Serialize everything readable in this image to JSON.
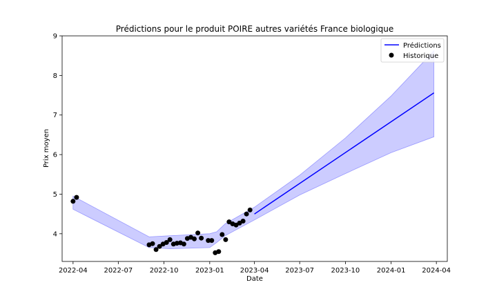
{
  "chart_data": {
    "type": "line",
    "title": "Prédictions pour le produit POIRE autres variétés France biologique",
    "xlabel": "Date",
    "ylabel": "Prix moyen",
    "xlim": [
      "2022-03-10",
      "2024-04-23"
    ],
    "ylim": [
      3.3,
      9.0
    ],
    "x_ticks": [
      "2022-04-01",
      "2022-07-01",
      "2022-10-01",
      "2023-01-01",
      "2023-04-01",
      "2023-07-01",
      "2023-10-01",
      "2024-01-01",
      "2024-04-01"
    ],
    "x_tick_labels": [
      "2022-04",
      "2022-07",
      "2022-10",
      "2023-01",
      "2023-04",
      "2023-07",
      "2023-10",
      "2024-01",
      "2024-04"
    ],
    "y_ticks": [
      4,
      5,
      6,
      7,
      8,
      9
    ],
    "legend": {
      "position": "top-right",
      "entries": [
        {
          "label": "Prédictions",
          "marker": "line",
          "color": "#0000ff"
        },
        {
          "label": "Historique",
          "marker": "dot",
          "color": "#000000"
        }
      ]
    },
    "colors": {
      "prediction_line": "#0000ff",
      "band": "#ccccff",
      "band_edge": "#9999ff",
      "history": "#000000"
    },
    "band": [
      {
        "x": "2022-04-01",
        "lower": 4.62,
        "upper": 4.95
      },
      {
        "x": "2022-09-01",
        "lower": 3.65,
        "upper": 3.92
      },
      {
        "x": "2022-10-15",
        "lower": 3.62,
        "upper": 3.95
      },
      {
        "x": "2023-01-01",
        "lower": 3.65,
        "upper": 4.0
      },
      {
        "x": "2023-01-15",
        "lower": 3.78,
        "upper": 4.05
      },
      {
        "x": "2023-02-01",
        "lower": 3.95,
        "upper": 4.25
      },
      {
        "x": "2023-04-01",
        "lower": 4.35,
        "upper": 4.67
      },
      {
        "x": "2023-07-01",
        "lower": 4.98,
        "upper": 5.48
      },
      {
        "x": "2023-10-01",
        "lower": 5.52,
        "upper": 6.42
      },
      {
        "x": "2024-01-01",
        "lower": 6.05,
        "upper": 7.48
      },
      {
        "x": "2024-03-27",
        "lower": 6.45,
        "upper": 8.62
      }
    ],
    "series": [
      {
        "name": "Prédictions",
        "type": "line",
        "x": [
          "2023-04-01",
          "2024-03-27"
        ],
        "y": [
          4.5,
          7.56
        ]
      },
      {
        "name": "Historique",
        "type": "scatter",
        "x": [
          "2022-04-01",
          "2022-04-08",
          "2022-09-01",
          "2022-09-08",
          "2022-09-15",
          "2022-09-22",
          "2022-09-29",
          "2022-10-06",
          "2022-10-13",
          "2022-10-20",
          "2022-10-27",
          "2022-11-03",
          "2022-11-10",
          "2022-11-17",
          "2022-11-24",
          "2022-12-01",
          "2022-12-08",
          "2022-12-15",
          "2022-12-29",
          "2023-01-05",
          "2023-01-12",
          "2023-01-19",
          "2023-01-26",
          "2023-02-02",
          "2023-02-09",
          "2023-02-16",
          "2023-02-23",
          "2023-03-02",
          "2023-03-09",
          "2023-03-16",
          "2023-03-23"
        ],
        "y": [
          4.82,
          4.92,
          3.72,
          3.75,
          3.6,
          3.68,
          3.74,
          3.78,
          3.85,
          3.74,
          3.76,
          3.77,
          3.74,
          3.88,
          3.91,
          3.87,
          4.02,
          3.89,
          3.83,
          3.83,
          3.52,
          3.55,
          3.98,
          3.85,
          4.3,
          4.25,
          4.22,
          4.27,
          4.32,
          4.5,
          4.6
        ]
      }
    ]
  }
}
